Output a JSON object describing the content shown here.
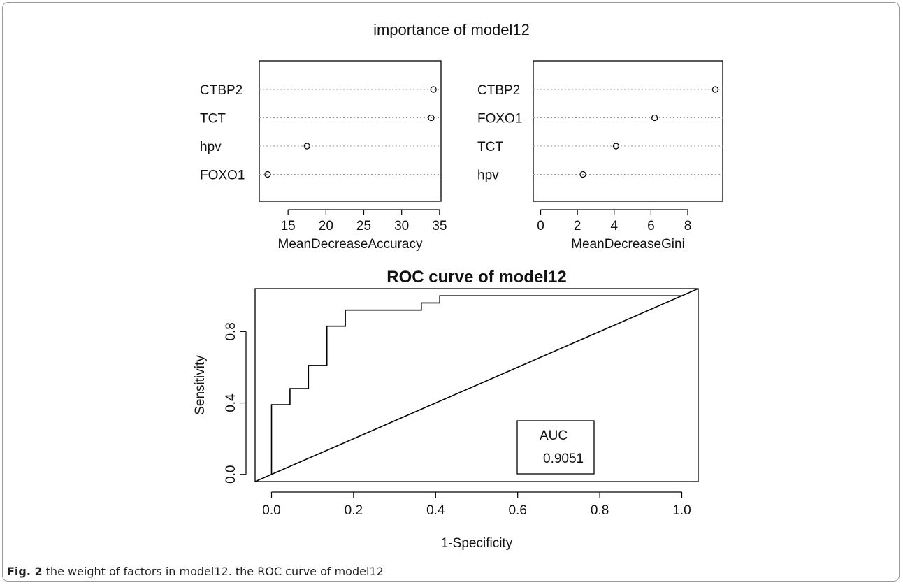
{
  "figure": {
    "caption_label": "Fig. 2",
    "caption_text": "the weight of factors in model12. the ROC curve of model12"
  },
  "chart_data": [
    {
      "type": "scatter",
      "title": "importance of model12",
      "xlabel": "MeanDecreaseAccuracy",
      "ylabel": "",
      "categories": [
        "CTBP2",
        "TCT",
        "hpv",
        "FOXO1"
      ],
      "values": [
        34.2,
        33.9,
        17.5,
        12.3
      ],
      "xlim": [
        11.2,
        35.2
      ],
      "xticks": [
        15,
        20,
        25,
        30,
        35
      ],
      "grid": "dotted horizontal"
    },
    {
      "type": "scatter",
      "title": "",
      "xlabel": "MeanDecreaseGini",
      "ylabel": "",
      "categories": [
        "CTBP2",
        "FOXO1",
        "TCT",
        "hpv"
      ],
      "values": [
        9.5,
        6.2,
        4.1,
        2.3
      ],
      "xlim": [
        -0.4,
        9.9
      ],
      "xticks": [
        0,
        2,
        4,
        6,
        8
      ],
      "grid": "dotted horizontal"
    },
    {
      "type": "line",
      "title": "ROC curve of model12",
      "xlabel": "1-Specificity",
      "ylabel": "Sensitivity",
      "xlim": [
        -0.04,
        1.04
      ],
      "ylim": [
        -0.04,
        1.04
      ],
      "xticks": [
        0.0,
        0.2,
        0.4,
        0.6,
        0.8,
        1.0
      ],
      "xtick_labels": [
        "0.0",
        "0.2",
        "0.4",
        "0.6",
        "0.8",
        "1.0"
      ],
      "yticks": [
        0.0,
        0.4,
        0.8
      ],
      "ytick_labels": [
        "0.0",
        "0.4",
        "0.8"
      ],
      "series": [
        {
          "x": [
            0,
            0,
            0.045,
            0.045,
            0.09,
            0.09,
            0.135,
            0.135,
            0.18,
            0.18,
            0.365,
            0.365,
            0.41,
            0.41,
            1.0
          ],
          "y": [
            0,
            0.39,
            0.39,
            0.48,
            0.48,
            0.61,
            0.61,
            0.83,
            0.83,
            0.92,
            0.92,
            0.96,
            0.96,
            1.0,
            1.0
          ]
        },
        {
          "x": [
            -0.04,
            1.04
          ],
          "y": [
            -0.04,
            1.04
          ]
        }
      ],
      "legend": {
        "title": "AUC",
        "value": "0.9051",
        "placement": "bottom-right"
      }
    }
  ]
}
